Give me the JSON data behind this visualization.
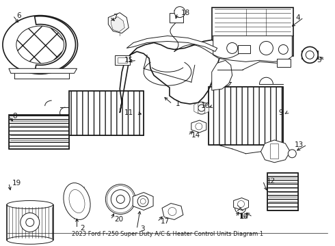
{
  "title": "2023 Ford F-250 Super Duty A/C & Heater Control Units Diagram 1",
  "bg_color": "#ffffff",
  "line_color": "#1a1a1a",
  "fig_width": 4.9,
  "fig_height": 3.6,
  "dpi": 100
}
